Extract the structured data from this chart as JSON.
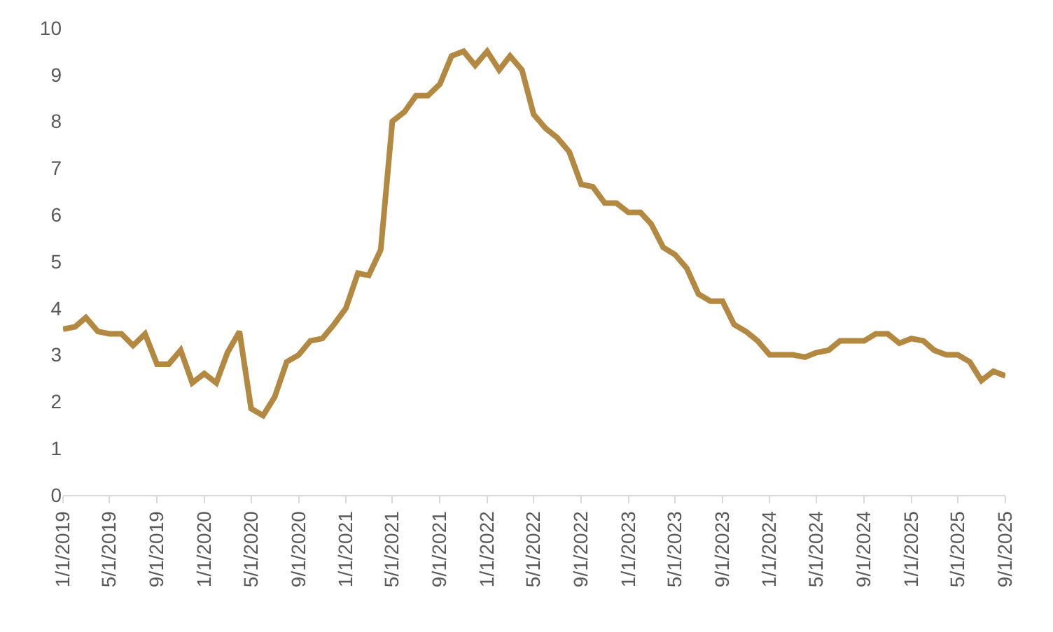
{
  "chart_data": {
    "type": "line",
    "x": [
      "2019-01",
      "2019-02",
      "2019-03",
      "2019-04",
      "2019-05",
      "2019-06",
      "2019-07",
      "2019-08",
      "2019-09",
      "2019-10",
      "2019-11",
      "2019-12",
      "2020-01",
      "2020-02",
      "2020-03",
      "2020-04",
      "2020-05",
      "2020-06",
      "2020-07",
      "2020-08",
      "2020-09",
      "2020-10",
      "2020-11",
      "2020-12",
      "2021-01",
      "2021-02",
      "2021-03",
      "2021-04",
      "2021-05",
      "2021-06",
      "2021-07",
      "2021-08",
      "2021-09",
      "2021-10",
      "2021-11",
      "2021-12",
      "2022-01",
      "2022-02",
      "2022-03",
      "2022-04",
      "2022-05",
      "2022-06",
      "2022-07",
      "2022-08",
      "2022-09",
      "2022-10",
      "2022-11",
      "2022-12",
      "2023-01",
      "2023-02",
      "2023-03",
      "2023-04",
      "2023-05",
      "2023-06",
      "2023-07",
      "2023-08",
      "2023-09",
      "2023-10",
      "2023-11",
      "2023-12",
      "2024-01",
      "2024-02",
      "2024-03",
      "2024-04",
      "2024-05",
      "2024-06",
      "2024-07",
      "2024-08",
      "2024-09",
      "2024-10",
      "2024-11",
      "2024-12",
      "2025-01",
      "2025-02",
      "2025-03",
      "2025-04",
      "2025-05",
      "2025-06",
      "2025-07",
      "2025-08",
      "2025-09"
    ],
    "series": [
      {
        "color": "#b38840",
        "values": [
          3.55,
          3.6,
          3.8,
          3.5,
          3.45,
          3.45,
          3.2,
          3.45,
          2.8,
          2.8,
          3.1,
          2.4,
          2.6,
          2.4,
          3.05,
          3.5,
          1.85,
          1.7,
          2.1,
          2.85,
          3.0,
          3.3,
          3.35,
          3.65,
          4.0,
          4.75,
          4.7,
          5.25,
          8.0,
          8.2,
          8.55,
          8.55,
          8.8,
          9.4,
          9.5,
          9.2,
          9.5,
          9.1,
          9.4,
          9.1,
          8.15,
          7.85,
          7.65,
          7.35,
          6.65,
          6.6,
          6.25,
          6.25,
          6.05,
          6.05,
          5.8,
          5.3,
          5.15,
          4.85,
          4.3,
          4.15,
          4.15,
          3.65,
          3.5,
          3.3,
          3.0,
          3.0,
          3.0,
          2.95,
          3.05,
          3.1,
          3.3,
          3.3,
          3.3,
          3.45,
          3.45,
          3.25,
          3.35,
          3.3,
          3.1,
          3.0,
          3.0,
          2.85,
          2.45,
          2.65,
          2.55
        ]
      }
    ],
    "xlim": [
      "2019-01-01",
      "2025-09-01"
    ],
    "xticks": [
      {
        "value": "2019-01-01",
        "label": "1/1/2019"
      },
      {
        "value": "2019-05-01",
        "label": "5/1/2019"
      },
      {
        "value": "2019-09-01",
        "label": "9/1/2019"
      },
      {
        "value": "2020-01-01",
        "label": "1/1/2020"
      },
      {
        "value": "2020-05-01",
        "label": "5/1/2020"
      },
      {
        "value": "2020-09-01",
        "label": "9/1/2020"
      },
      {
        "value": "2021-01-01",
        "label": "1/1/2021"
      },
      {
        "value": "2021-05-01",
        "label": "5/1/2021"
      },
      {
        "value": "2021-09-01",
        "label": "9/1/2021"
      },
      {
        "value": "2022-01-01",
        "label": "1/1/2022"
      },
      {
        "value": "2022-05-01",
        "label": "5/1/2022"
      },
      {
        "value": "2022-09-01",
        "label": "9/1/2022"
      },
      {
        "value": "2023-01-01",
        "label": "1/1/2023"
      },
      {
        "value": "2023-05-01",
        "label": "5/1/2023"
      },
      {
        "value": "2023-09-01",
        "label": "9/1/2023"
      },
      {
        "value": "2024-01-01",
        "label": "1/1/2024"
      },
      {
        "value": "2024-05-01",
        "label": "5/1/2024"
      },
      {
        "value": "2024-09-01",
        "label": "9/1/2024"
      },
      {
        "value": "2025-01-01",
        "label": "1/1/2025"
      },
      {
        "value": "2025-05-01",
        "label": "5/1/2025"
      },
      {
        "value": "2025-09-01",
        "label": "9/1/2025"
      }
    ],
    "ylim": [
      0,
      10
    ],
    "yticks": [
      0,
      1,
      2,
      3,
      4,
      5,
      6,
      7,
      8,
      9,
      10
    ],
    "marker": "none",
    "line_style": "solid"
  }
}
